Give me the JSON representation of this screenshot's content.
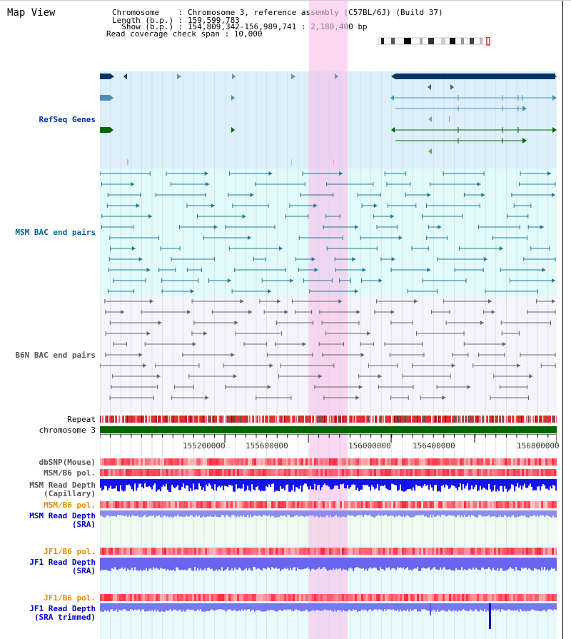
{
  "header": {
    "title": "Map View",
    "chromosome_line": "Chromosome    : Chromosome 3, reference assembly (C57BL/6J) (Build 37)",
    "length_line": "Length (b.p.) : 159,599,783",
    "show_line": "  Show (b.p.) : 154,809,342-156,989,741 : 2,180,400 bp",
    "coverage_line": "Read coverage check span : 10,000"
  },
  "tracks": {
    "refseq": "RefSeq Genes",
    "msm_bac": "MSM BAC end pairs",
    "b6n_bac": "B6N BAC end pairs",
    "repeat": "Repeat",
    "chromosome": "chromosome 3",
    "dbsnp": "dbSNP(Mouse)",
    "msm_b6_pol_1": "MSM/B6 pol.",
    "msm_depth_cap_1": "MSM Read Depth",
    "msm_depth_cap_2": "(Capillary)",
    "msm_b6_pol_2": "MSM/B6 pol.",
    "msm_depth_sra_1": "MSM Read Depth",
    "msm_depth_sra_2": "(SRA)",
    "jf1_pol_1": "JF1/B6 pol.",
    "jf1_depth_sra_1": "JF1 Read Depth",
    "jf1_depth_sra_2": "(SRA)",
    "jf1_pol_2": "JF1/B6 pol.",
    "jf1_depth_trim_1": "JF1 Read Depth",
    "jf1_depth_trim_2": "(SRA trimmed)"
  },
  "axis": {
    "ticks": [
      "155200000",
      "155600000",
      "156000000",
      "156400000",
      "156800000"
    ]
  },
  "colors": {
    "refseq_bg": "#ddf0fa",
    "msm_bac_bg": "#e2fafa",
    "b6n_bac_bg": "#f4f4fa",
    "highlight": "#fad2f0",
    "msm_label": "#006699",
    "b6n_label": "#555555",
    "orange_label": "#e68a00",
    "blue_label": "#0000cc",
    "chrom_green": "#006600"
  }
}
